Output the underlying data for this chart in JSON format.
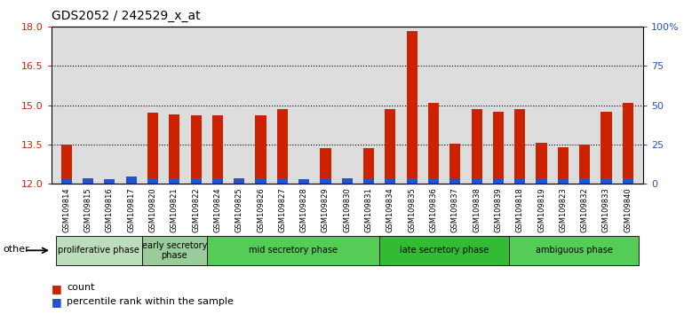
{
  "title": "GDS2052 / 242529_x_at",
  "samples": [
    "GSM109814",
    "GSM109815",
    "GSM109816",
    "GSM109817",
    "GSM109820",
    "GSM109821",
    "GSM109822",
    "GSM109824",
    "GSM109825",
    "GSM109826",
    "GSM109827",
    "GSM109828",
    "GSM109829",
    "GSM109830",
    "GSM109831",
    "GSM109834",
    "GSM109835",
    "GSM109836",
    "GSM109837",
    "GSM109838",
    "GSM109839",
    "GSM109818",
    "GSM109819",
    "GSM109823",
    "GSM109832",
    "GSM109833",
    "GSM109840"
  ],
  "count_values": [
    13.48,
    12.2,
    12.15,
    12.1,
    14.7,
    14.65,
    14.6,
    14.6,
    12.2,
    14.63,
    14.85,
    12.1,
    13.35,
    12.2,
    13.35,
    14.85,
    17.85,
    15.1,
    13.52,
    14.85,
    14.75,
    14.85,
    13.55,
    13.38,
    13.5,
    14.75,
    15.1
  ],
  "percentile_values": [
    0.18,
    0.22,
    0.18,
    0.28,
    0.22,
    0.2,
    0.22,
    0.22,
    0.18,
    0.22,
    0.2,
    0.18,
    0.2,
    0.18,
    0.18,
    0.22,
    0.22,
    0.22,
    0.18,
    0.22,
    0.22,
    0.22,
    0.2,
    0.18,
    0.2,
    0.22,
    0.22
  ],
  "ylim_left": [
    12,
    18
  ],
  "ylim_right": [
    0,
    100
  ],
  "yticks_left": [
    12,
    13.5,
    15,
    16.5,
    18
  ],
  "yticks_right_vals": [
    0,
    25,
    50,
    75,
    100
  ],
  "ytick_labels_right": [
    "0",
    "25",
    "50",
    "75",
    "100%"
  ],
  "grid_lines": [
    13.5,
    15,
    16.5
  ],
  "bar_color_red": "#cc2200",
  "bar_color_blue": "#2255cc",
  "phases": [
    {
      "label": "proliferative phase",
      "start": 0,
      "end": 3,
      "color": "#bbddbb"
    },
    {
      "label": "early secretory\nphase",
      "start": 4,
      "end": 6,
      "color": "#99cc99"
    },
    {
      "label": "mid secretory phase",
      "start": 7,
      "end": 14,
      "color": "#55cc55"
    },
    {
      "label": "late secretory phase",
      "start": 15,
      "end": 20,
      "color": "#33bb33"
    },
    {
      "label": "ambiguous phase",
      "start": 21,
      "end": 26,
      "color": "#55cc55"
    }
  ],
  "bar_width": 0.5,
  "plot_bg": "#dddddd",
  "xtick_bg": "#cccccc",
  "left_ycolor": "#cc2200",
  "right_ycolor": "#2255cc",
  "title_fontsize": 10,
  "bar_fontsize": 6,
  "phase_fontsize": 7,
  "legend_fontsize": 8
}
